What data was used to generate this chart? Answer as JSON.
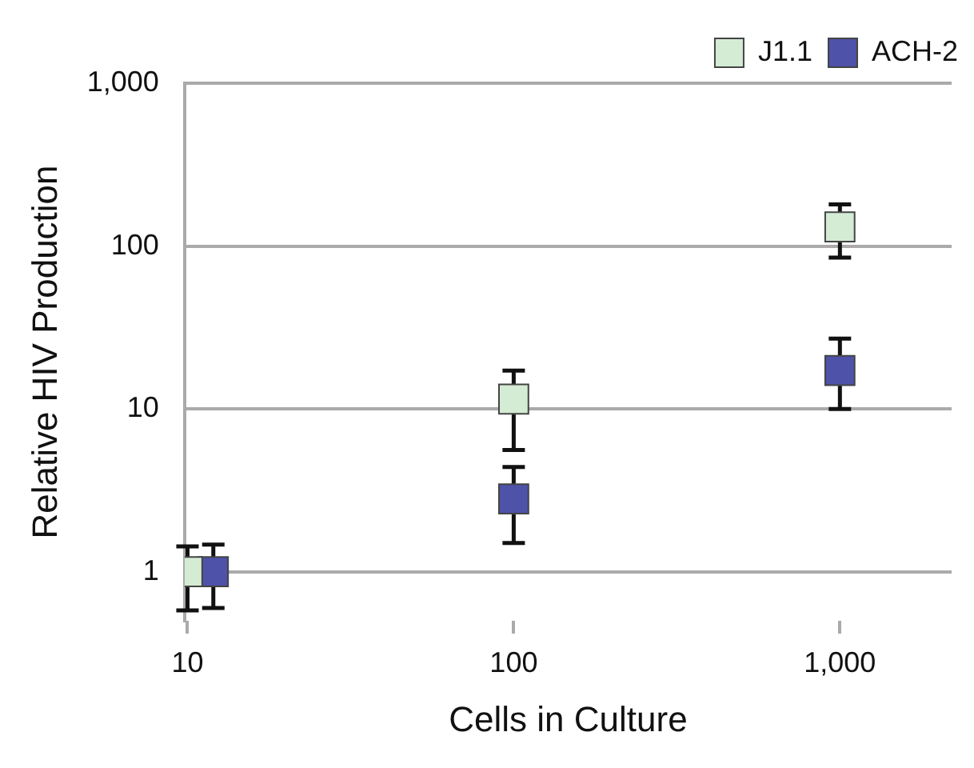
{
  "chart_data": {
    "type": "scatter",
    "xlabel": "Cells in Culture",
    "ylabel": "Relative HIV Production",
    "log": "xy",
    "grid": "y",
    "legend": "top right",
    "marker": "square",
    "xlim": [
      9.8,
      2200
    ],
    "xticks": [
      10,
      100,
      {
        "value": 1000,
        "label": "1,000"
      }
    ],
    "ylim": [
      0.5,
      1000
    ],
    "yticks": [
      1,
      10,
      100,
      {
        "value": 1000,
        "label": "1,000"
      }
    ],
    "series": [
      {
        "name": "J1.1",
        "color": "#d4ecd4",
        "x": [
          10,
          100,
          1000
        ],
        "values": [
          1,
          11.5,
          131
        ],
        "errors": [
          [
            0.58,
            1.43
          ],
          [
            5.6,
            17.2
          ],
          [
            85,
            180
          ]
        ]
      },
      {
        "name": "ACH-2",
        "color": "#4e52a8",
        "x": [
          12,
          100,
          1000
        ],
        "values": [
          1,
          2.8,
          17.2
        ],
        "errors": [
          [
            0.6,
            1.47
          ],
          [
            1.5,
            4.4
          ],
          [
            10,
            27
          ]
        ]
      }
    ]
  }
}
